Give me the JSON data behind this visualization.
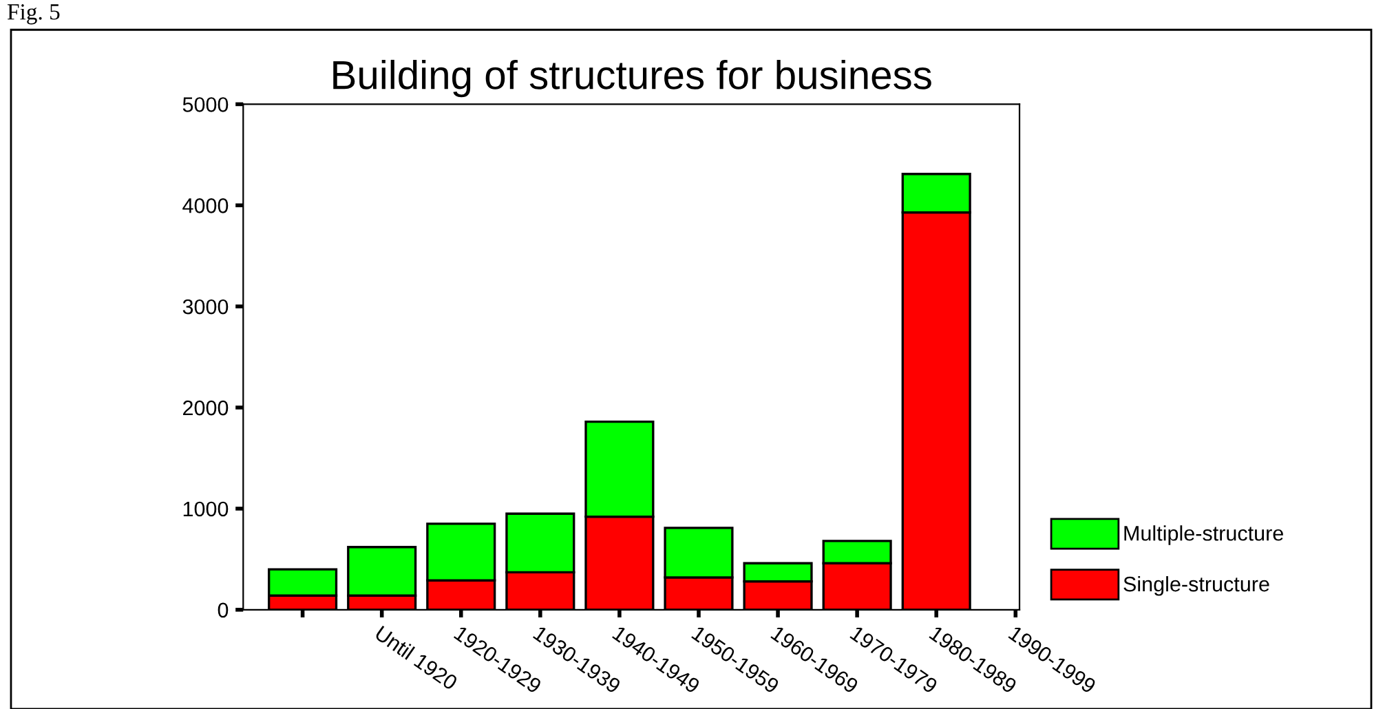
{
  "chart_data": {
    "type": "bar",
    "title": "Building of structures for business",
    "annotations": [
      "Fig. 5"
    ],
    "categories": [
      null,
      "Until 1920",
      "1920-1929",
      "1930-1939",
      "1940-1949",
      "1950-1959",
      "1960-1969",
      "1970-1979",
      "1980-1989",
      "1990-1999"
    ],
    "stacked": true,
    "series": [
      {
        "name": "Single-structure",
        "color": "#ff0000",
        "values": [
          140,
          140,
          290,
          370,
          920,
          320,
          280,
          460,
          3930,
          null
        ]
      },
      {
        "name": "Multiple-structure",
        "color": "#00ff00",
        "values": [
          260,
          480,
          560,
          580,
          940,
          490,
          180,
          220,
          380,
          null
        ]
      }
    ],
    "ylim": [
      0,
      5000
    ],
    "yticks": [
      0,
      1000,
      2000,
      3000,
      4000,
      5000
    ],
    "grid": false,
    "legend": "right"
  }
}
